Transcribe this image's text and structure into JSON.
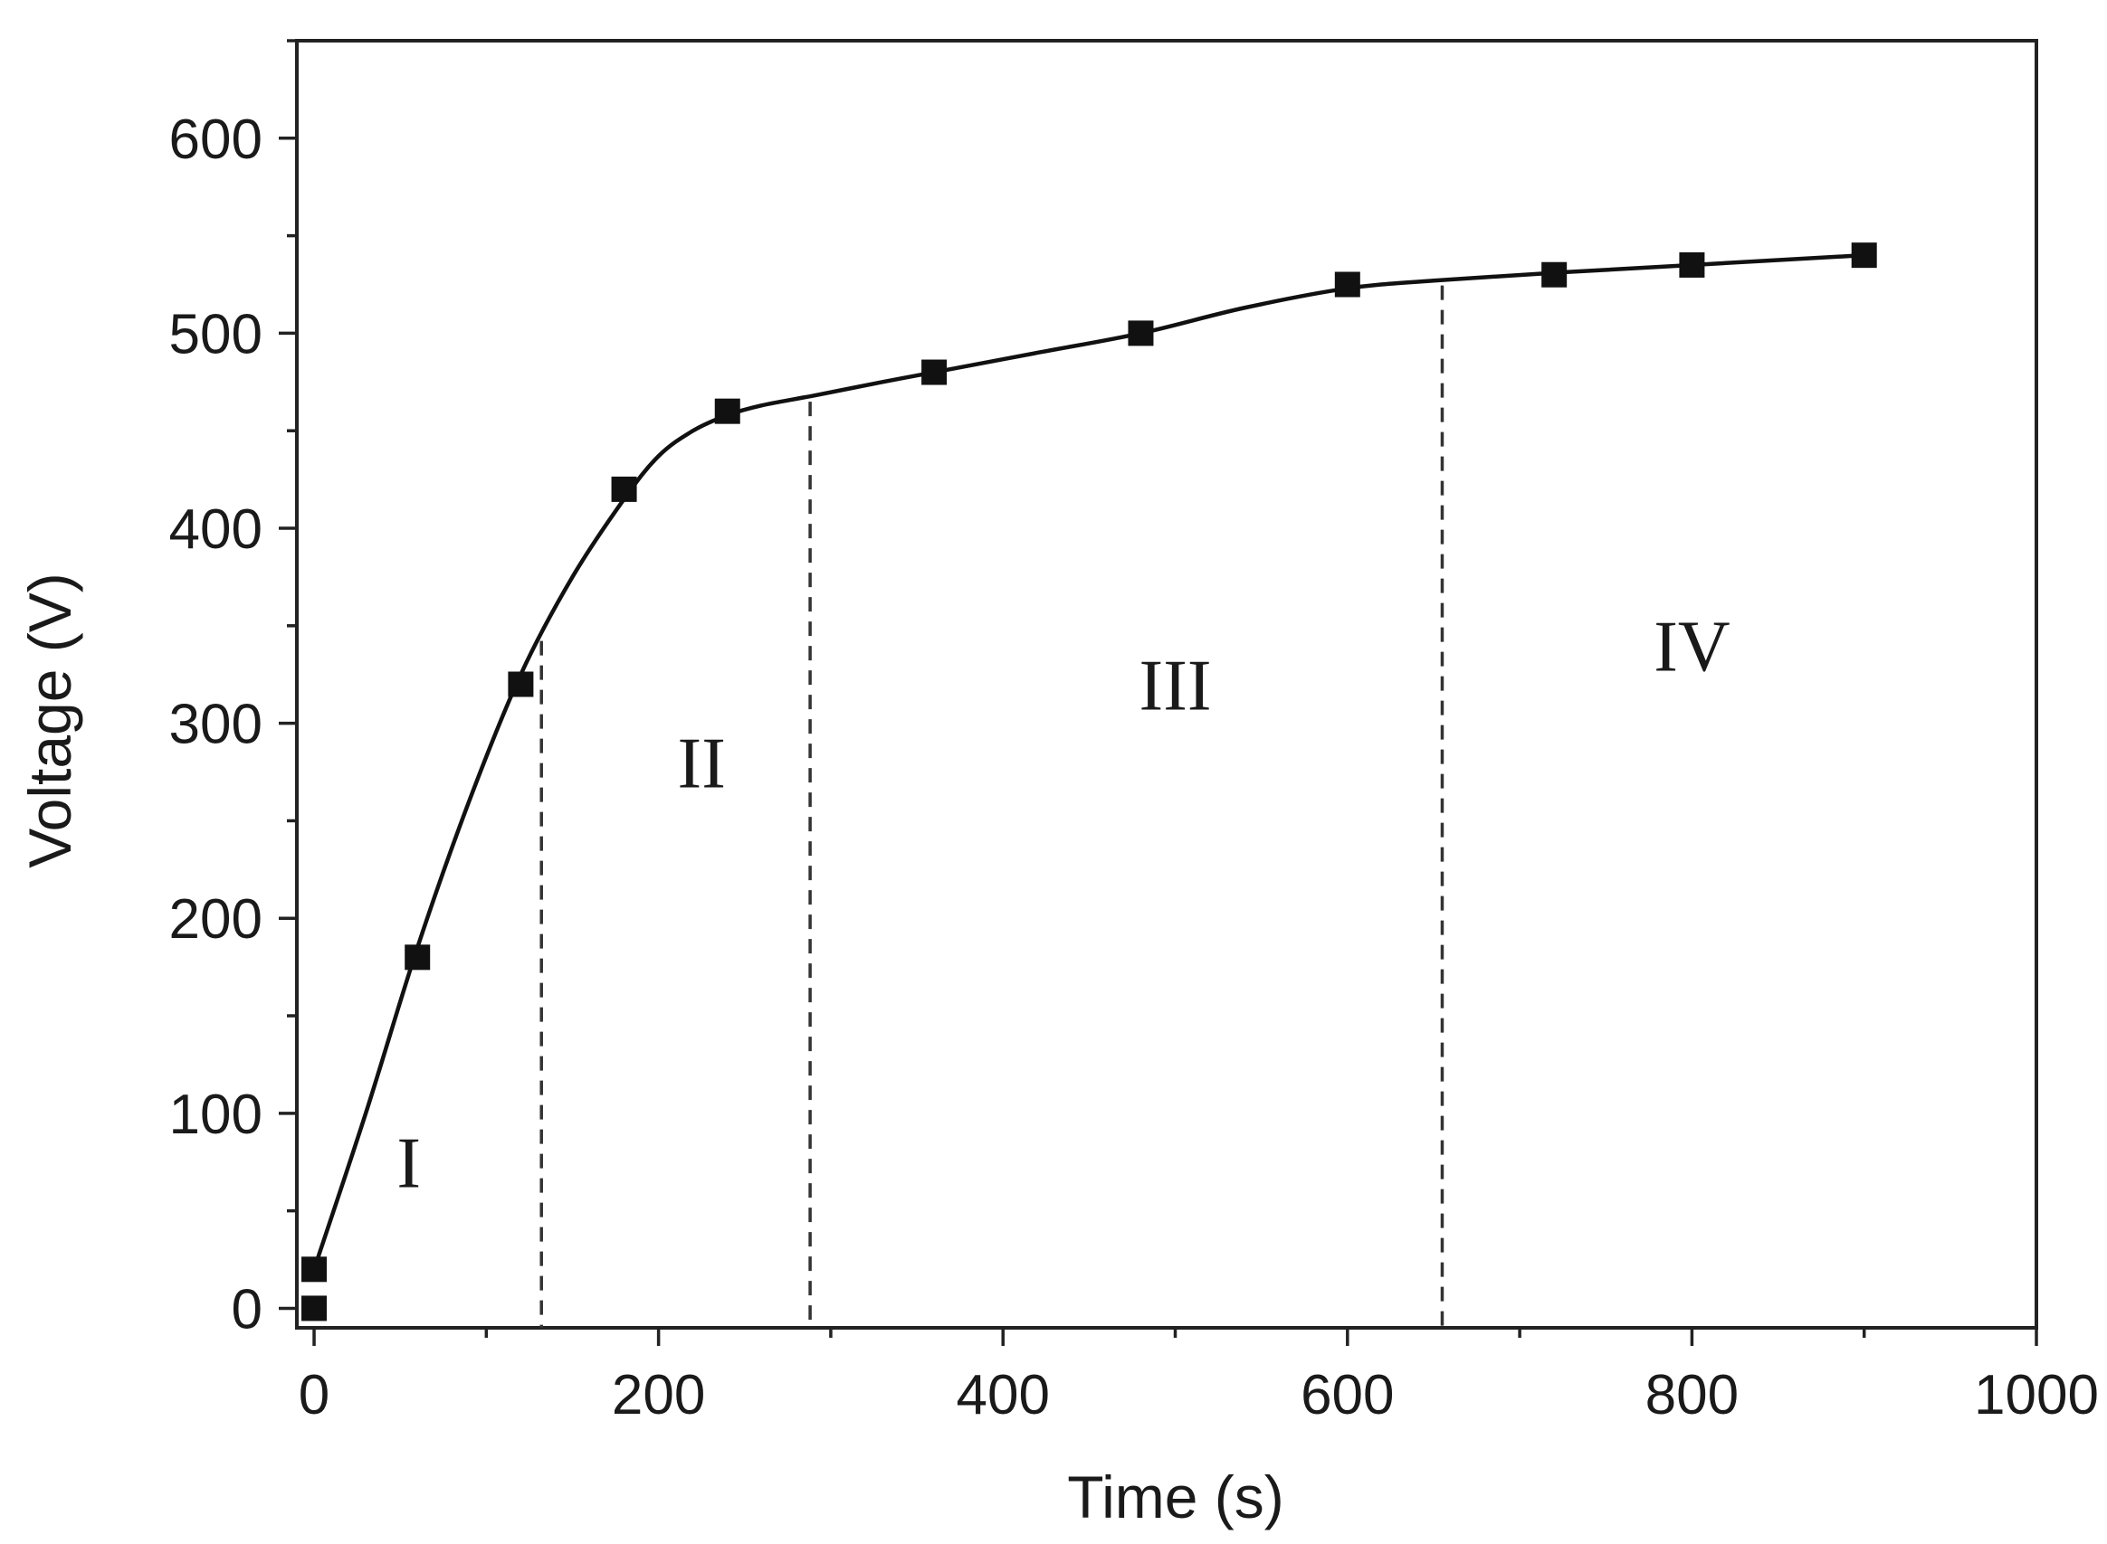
{
  "chart_data": {
    "type": "line",
    "xlabel": "Time (s)",
    "ylabel": "Voltage (V)",
    "xlim": [
      -10,
      1000
    ],
    "ylim": [
      -10,
      650
    ],
    "xticks": [
      0,
      200,
      400,
      600,
      800,
      1000
    ],
    "yticks": [
      0,
      100,
      200,
      300,
      400,
      500,
      600
    ],
    "xtick_labels": [
      "0",
      "200",
      "400",
      "600",
      "800",
      "1000"
    ],
    "ytick_labels": [
      "0",
      "100",
      "200",
      "300",
      "400",
      "500",
      "600"
    ],
    "grid": false,
    "series": [
      {
        "marker": "square",
        "x": [
          0,
          0,
          60,
          120,
          180,
          240,
          360,
          480,
          600,
          720,
          800,
          900
        ],
        "y": [
          0,
          20,
          180,
          320,
          420,
          460,
          480,
          500,
          525,
          530,
          535,
          540
        ]
      }
    ],
    "fit_curve": {
      "x": [
        0,
        30,
        60,
        90,
        120,
        150,
        180,
        200,
        220,
        240,
        260,
        290,
        330,
        360,
        420,
        480,
        540,
        600,
        650,
        720,
        800,
        900
      ],
      "y": [
        20,
        100,
        185,
        260,
        325,
        375,
        415,
        437,
        450,
        458,
        463,
        468,
        475,
        480,
        490,
        500,
        513,
        523,
        527,
        531,
        535,
        540
      ]
    },
    "region_boundaries": [
      132,
      288,
      655
    ],
    "annotations": [
      {
        "text": "I",
        "x": 55,
        "y": 75
      },
      {
        "text": "II",
        "x": 225,
        "y": 280
      },
      {
        "text": "III",
        "x": 500,
        "y": 320
      },
      {
        "text": "IV",
        "x": 800,
        "y": 340
      }
    ],
    "colors": {
      "line": "#111111",
      "marker": "#111111",
      "frame": "#222222",
      "divider": "#333333"
    }
  }
}
